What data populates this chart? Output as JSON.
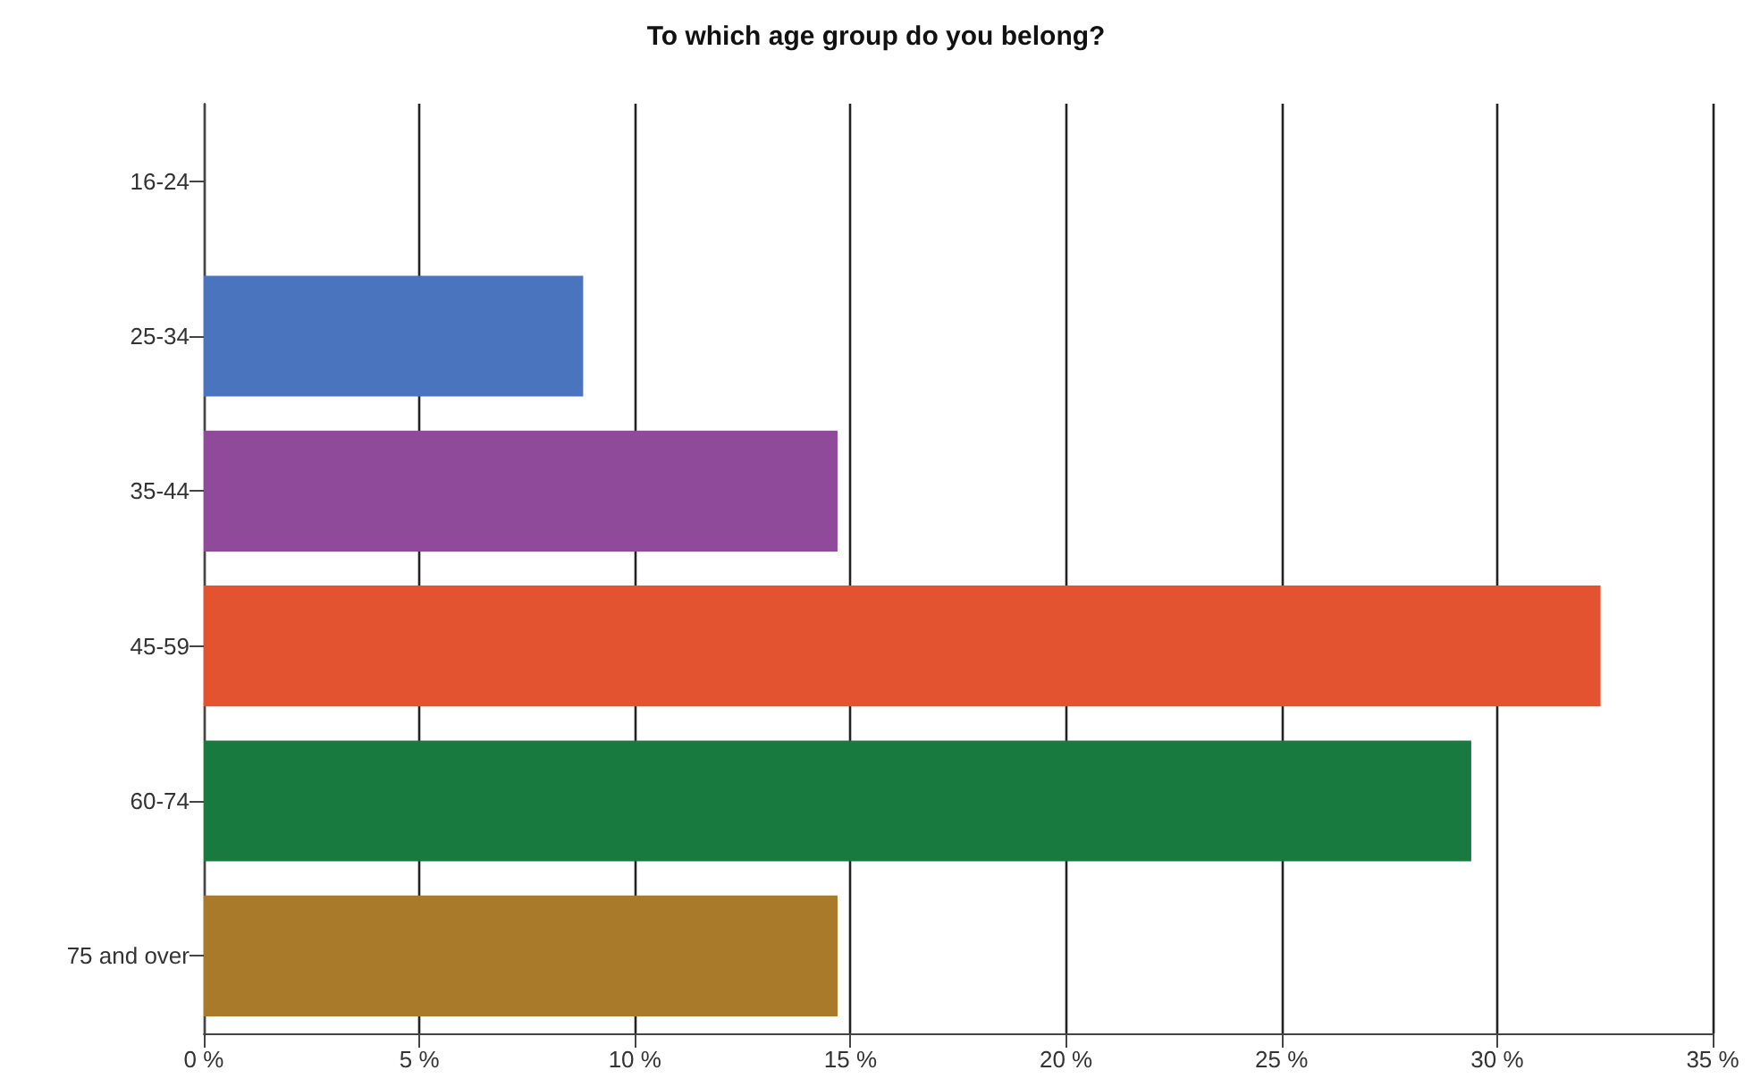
{
  "chart_data": {
    "type": "bar",
    "orientation": "horizontal",
    "title": "To which age group do you belong?",
    "categories": [
      "16-24",
      "25-34",
      "35-44",
      "45-59",
      "60-74",
      "75 and over"
    ],
    "values": [
      0,
      8.8,
      14.7,
      32.4,
      29.4,
      14.7
    ],
    "colors": [
      null,
      "#4a74bd",
      "#8f4a9a",
      "#e4532f",
      "#187a3e",
      "#a87a2a"
    ],
    "xlim": [
      0,
      35
    ],
    "xticks": [
      {
        "value": 0,
        "label": "0 %"
      },
      {
        "value": 5,
        "label": "5 %"
      },
      {
        "value": 10,
        "label": "10 %"
      },
      {
        "value": 15,
        "label": "15 %"
      },
      {
        "value": 20,
        "label": "20 %"
      },
      {
        "value": 25,
        "label": "25 %"
      },
      {
        "value": 30,
        "label": "30 %"
      },
      {
        "value": 35,
        "label": "35 %"
      }
    ],
    "grid": "x"
  }
}
